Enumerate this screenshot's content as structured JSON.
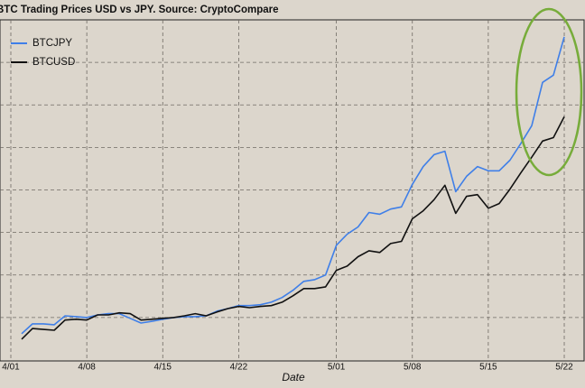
{
  "chart_data": {
    "type": "line",
    "title": "BTC Trading Prices USD vs JPY. Source: CryptoCompare",
    "xlabel": "Date",
    "categories": [
      "4/01",
      null,
      null,
      null,
      null,
      null,
      null,
      "4/08",
      null,
      null,
      null,
      null,
      null,
      null,
      "4/15",
      null,
      null,
      null,
      null,
      null,
      null,
      "4/22",
      null,
      null,
      null,
      null,
      null,
      null,
      null,
      null,
      "5/01",
      null,
      null,
      null,
      null,
      null,
      null,
      "5/08",
      null,
      null,
      null,
      null,
      null,
      null,
      "5/15",
      null,
      null,
      null,
      null,
      null,
      null,
      "5/22"
    ],
    "series": [
      {
        "name": "BTCJPY",
        "color": "#3f7fe8",
        "values": [
          null,
          0.62,
          0.85,
          0.85,
          0.83,
          1.04,
          1.02,
          1.0,
          1.06,
          1.09,
          1.09,
          0.98,
          0.87,
          0.91,
          0.96,
          1.0,
          1.02,
          1.02,
          1.04,
          1.15,
          1.21,
          1.28,
          1.28,
          1.3,
          1.36,
          1.47,
          1.64,
          1.85,
          1.89,
          2.0,
          2.7,
          2.96,
          3.13,
          3.47,
          3.43,
          3.55,
          3.6,
          4.13,
          4.55,
          4.83,
          4.91,
          3.96,
          4.32,
          4.55,
          4.45,
          4.45,
          4.7,
          5.09,
          5.51,
          6.53,
          6.7,
          7.6
        ]
      },
      {
        "name": "BTCUSD",
        "color": "#111111",
        "values": [
          null,
          0.49,
          0.74,
          0.72,
          0.7,
          0.94,
          0.96,
          0.94,
          1.06,
          1.06,
          1.11,
          1.09,
          0.94,
          0.96,
          0.98,
          1.0,
          1.04,
          1.09,
          1.04,
          1.13,
          1.21,
          1.26,
          1.23,
          1.26,
          1.28,
          1.36,
          1.51,
          1.68,
          1.68,
          1.72,
          2.11,
          2.21,
          2.43,
          2.57,
          2.53,
          2.74,
          2.79,
          3.32,
          3.51,
          3.77,
          4.11,
          3.45,
          3.85,
          3.89,
          3.57,
          3.68,
          4.02,
          4.4,
          4.77,
          5.15,
          5.23,
          5.72
        ]
      }
    ],
    "ylim": [
      0,
      8
    ],
    "yticks": [
      1,
      2,
      3,
      4,
      5,
      6,
      7
    ],
    "grid": true,
    "legend": "upper left"
  }
}
